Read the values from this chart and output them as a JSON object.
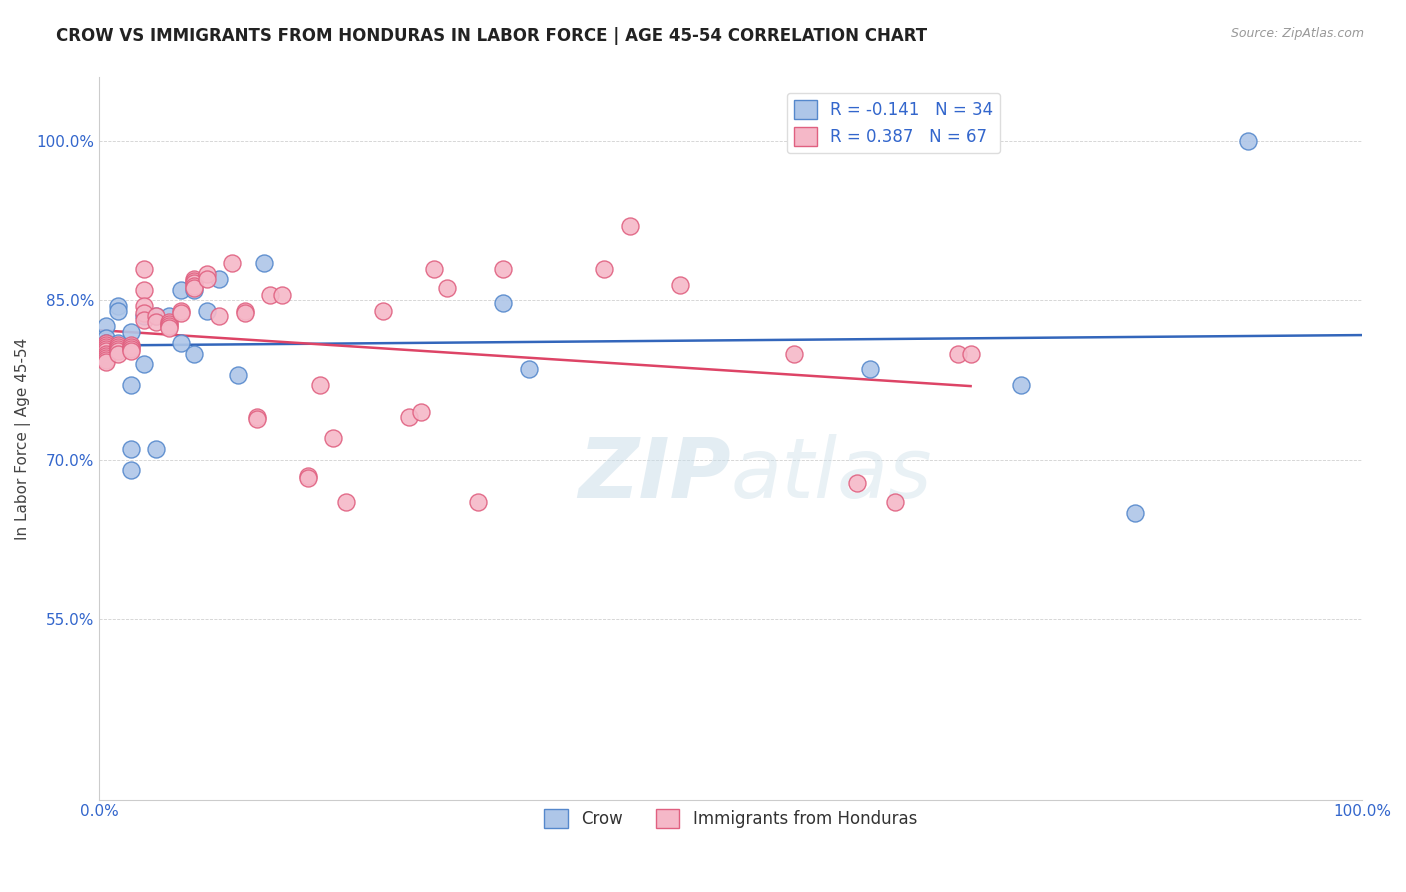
{
  "title": "CROW VS IMMIGRANTS FROM HONDURAS IN LABOR FORCE | AGE 45-54 CORRELATION CHART",
  "source": "Source: ZipAtlas.com",
  "ylabel": "In Labor Force | Age 45-54",
  "xlim": [
    0.0,
    1.0
  ],
  "ylim": [
    0.38,
    1.06
  ],
  "y_ticks": [
    1.0,
    0.85,
    0.7,
    0.55
  ],
  "y_tick_labels": [
    "100.0%",
    "85.0%",
    "70.0%",
    "55.0%"
  ],
  "x_ticks": [
    0.0,
    0.2,
    0.4,
    0.5,
    0.6,
    0.8,
    1.0
  ],
  "x_tick_labels": [
    "0.0%",
    "",
    "",
    "",
    "",
    "",
    "100.0%"
  ],
  "watermark_zip": "ZIP",
  "watermark_atlas": "atlas",
  "legend_label1": "Crow",
  "legend_label2": "Immigrants from Honduras",
  "R_crow": -0.141,
  "N_crow": 34,
  "R_honduras": 0.387,
  "N_honduras": 67,
  "crow_fill": "#aec6e8",
  "crow_edge": "#5588cc",
  "honduras_fill": "#f5b8c8",
  "honduras_edge": "#e06080",
  "crow_line_color": "#3366bb",
  "honduras_line_color": "#dd4466",
  "background_color": "#ffffff",
  "crow_x": [
    0.005,
    0.005,
    0.005,
    0.005,
    0.005,
    0.005,
    0.005,
    0.005,
    0.015,
    0.015,
    0.015,
    0.025,
    0.025,
    0.025,
    0.025,
    0.035,
    0.035,
    0.045,
    0.045,
    0.055,
    0.065,
    0.065,
    0.075,
    0.075,
    0.085,
    0.095,
    0.11,
    0.13,
    0.32,
    0.34,
    0.61,
    0.73,
    0.82,
    0.91
  ],
  "crow_y": [
    0.826,
    0.815,
    0.81,
    0.808,
    0.806,
    0.804,
    0.802,
    0.8,
    0.845,
    0.84,
    0.81,
    0.82,
    0.77,
    0.71,
    0.69,
    0.835,
    0.79,
    0.835,
    0.71,
    0.835,
    0.86,
    0.81,
    0.86,
    0.8,
    0.84,
    0.87,
    0.78,
    0.885,
    0.848,
    0.785,
    0.785,
    0.77,
    0.65,
    1.0
  ],
  "honduras_x": [
    0.005,
    0.005,
    0.005,
    0.005,
    0.005,
    0.005,
    0.005,
    0.005,
    0.005,
    0.005,
    0.015,
    0.015,
    0.015,
    0.015,
    0.015,
    0.025,
    0.025,
    0.025,
    0.025,
    0.035,
    0.035,
    0.035,
    0.035,
    0.035,
    0.045,
    0.045,
    0.055,
    0.055,
    0.055,
    0.055,
    0.065,
    0.065,
    0.075,
    0.075,
    0.075,
    0.075,
    0.075,
    0.085,
    0.085,
    0.095,
    0.105,
    0.115,
    0.115,
    0.125,
    0.125,
    0.135,
    0.145,
    0.165,
    0.165,
    0.175,
    0.185,
    0.195,
    0.225,
    0.245,
    0.255,
    0.265,
    0.275,
    0.3,
    0.32,
    0.4,
    0.42,
    0.46,
    0.55,
    0.6,
    0.63,
    0.68,
    0.69
  ],
  "honduras_y": [
    0.81,
    0.808,
    0.806,
    0.804,
    0.802,
    0.8,
    0.798,
    0.796,
    0.794,
    0.792,
    0.808,
    0.806,
    0.804,
    0.802,
    0.8,
    0.808,
    0.806,
    0.804,
    0.802,
    0.88,
    0.86,
    0.845,
    0.838,
    0.832,
    0.835,
    0.83,
    0.83,
    0.828,
    0.826,
    0.824,
    0.84,
    0.838,
    0.87,
    0.868,
    0.866,
    0.864,
    0.862,
    0.875,
    0.87,
    0.835,
    0.885,
    0.84,
    0.838,
    0.74,
    0.738,
    0.855,
    0.855,
    0.685,
    0.683,
    0.77,
    0.72,
    0.66,
    0.84,
    0.74,
    0.745,
    0.88,
    0.862,
    0.66,
    0.88,
    0.88,
    0.92,
    0.865,
    0.8,
    0.678,
    0.66,
    0.8,
    0.8
  ],
  "title_fontsize": 12,
  "axis_label_fontsize": 11,
  "tick_fontsize": 11,
  "legend_fontsize": 12
}
